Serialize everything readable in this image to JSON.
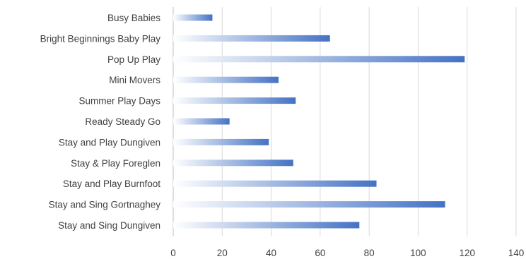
{
  "chart_data": {
    "type": "bar",
    "orientation": "horizontal",
    "title": "",
    "xlabel": "",
    "ylabel": "",
    "categories": [
      "Busy Babies",
      "Bright Beginnings Baby Play",
      "Pop Up Play",
      "Mini Movers",
      "Summer Play Days",
      "Ready Steady Go",
      "Stay and Play Dungiven",
      "Stay & Play Foreglen",
      "Stay and Play Burnfoot",
      "Stay and Sing Gortnaghey",
      "Stay and Sing Dungiven"
    ],
    "values": [
      16,
      64,
      119,
      43,
      50,
      23,
      39,
      49,
      83,
      111,
      76
    ],
    "xlim": [
      0,
      140
    ],
    "xticks": [
      "0",
      "20",
      "40",
      "60",
      "80",
      "100",
      "120",
      "140"
    ],
    "grid": true,
    "legend": "none",
    "colors": {
      "bar_dark": "#4472c4",
      "bar_light": "#ffffff",
      "grid": "#d9d9d9",
      "text": "#404040"
    }
  }
}
